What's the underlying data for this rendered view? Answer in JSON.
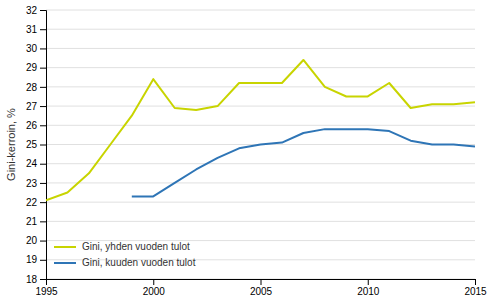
{
  "chart_data": {
    "type": "line",
    "y_label": "Gini-kerroin, %",
    "x": [
      1995,
      1996,
      1997,
      1998,
      1999,
      2000,
      2001,
      2002,
      2003,
      2004,
      2005,
      2006,
      2007,
      2008,
      2009,
      2010,
      2011,
      2012,
      2013,
      2014,
      2015
    ],
    "series": [
      {
        "name": "Gini, yhden vuoden tulot",
        "color": "#c8d400",
        "values": [
          22.1,
          22.5,
          23.5,
          25.0,
          26.5,
          28.4,
          26.9,
          26.8,
          27.0,
          28.2,
          28.2,
          28.2,
          29.4,
          28.0,
          27.5,
          27.5,
          28.2,
          26.9,
          27.1,
          27.1,
          27.2
        ]
      },
      {
        "name": "Gini, kuuden vuoden tulot",
        "color": "#2e75b6",
        "values": [
          null,
          null,
          null,
          null,
          22.3,
          22.3,
          23.0,
          23.7,
          24.3,
          24.8,
          25.0,
          25.1,
          25.6,
          25.8,
          25.8,
          25.8,
          25.7,
          25.2,
          25.0,
          25.0,
          24.9
        ]
      }
    ],
    "xlim": [
      1995,
      2015
    ],
    "ylim": [
      18,
      32
    ],
    "xticks": [
      1995,
      2000,
      2005,
      2010,
      2015
    ],
    "yticks": [
      18,
      19,
      20,
      21,
      22,
      23,
      24,
      25,
      26,
      27,
      28,
      29,
      30,
      31,
      32
    ],
    "grid": true,
    "legend": "lower left"
  }
}
